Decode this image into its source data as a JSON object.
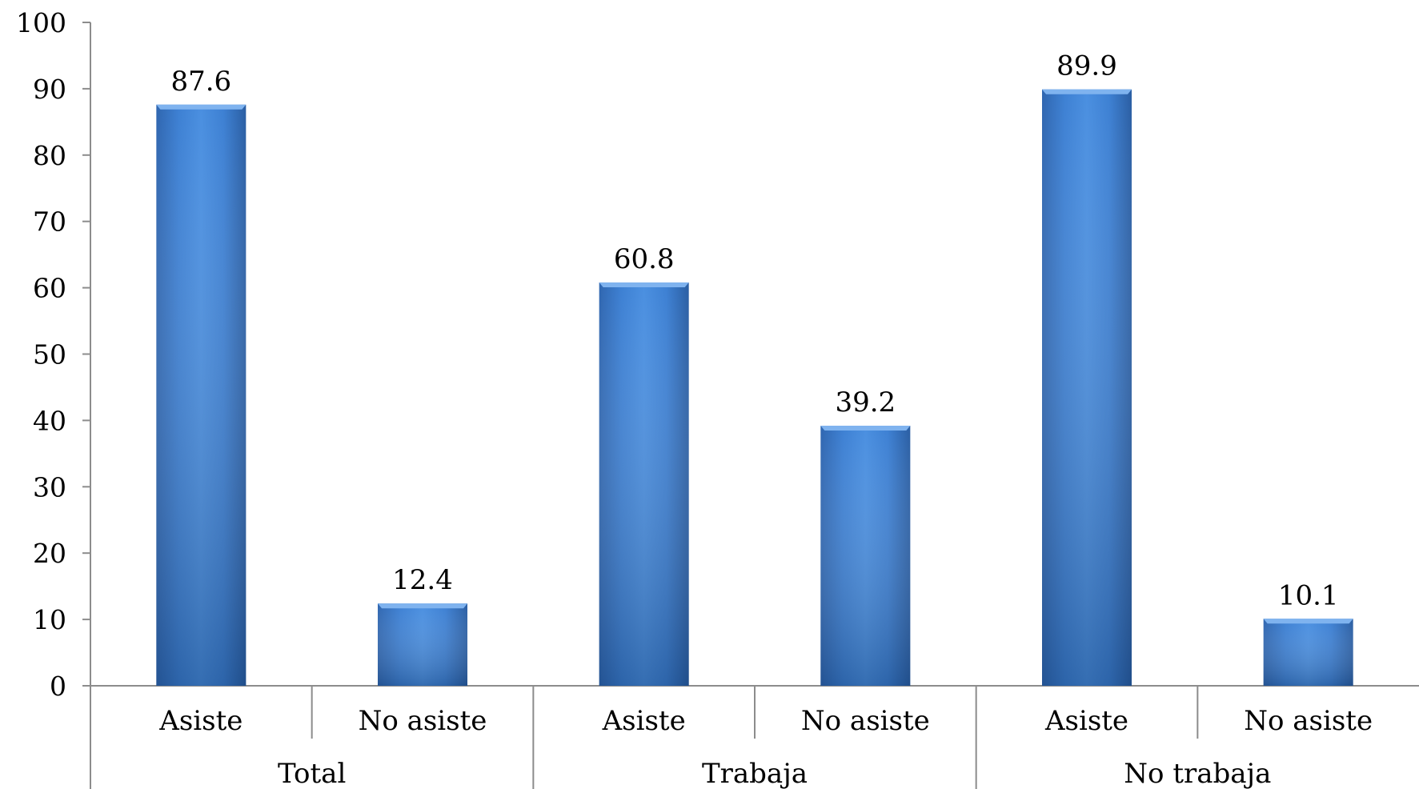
{
  "chart_data": {
    "type": "bar",
    "title": "",
    "xlabel": "",
    "ylabel": "",
    "ylim": [
      0,
      100
    ],
    "yticks": [
      "0",
      "10",
      "20",
      "30",
      "40",
      "50",
      "60",
      "70",
      "80",
      "90",
      "100"
    ],
    "grid": false,
    "legend": "none",
    "categories": [
      {
        "label": "Asiste",
        "group": "Total",
        "value": 87.6,
        "value_label": "87.6"
      },
      {
        "label": "No asiste",
        "group": "Total",
        "value": 12.4,
        "value_label": "12.4"
      },
      {
        "label": "Asiste",
        "group": "Trabaja",
        "value": 60.8,
        "value_label": "60.8"
      },
      {
        "label": "No asiste",
        "group": "Trabaja",
        "value": 39.2,
        "value_label": "39.2"
      },
      {
        "label": "Asiste",
        "group": "No trabaja",
        "value": 89.9,
        "value_label": "89.9"
      },
      {
        "label": "No asiste",
        "group": "No trabaja",
        "value": 10.1,
        "value_label": "10.1"
      }
    ],
    "groups": [
      "Total",
      "Trabaja",
      "No trabaja"
    ],
    "colors": {
      "bar_light": "#4a8fe0",
      "bar_mid": "#3a7bcc",
      "bar_dark": "#2a5ea3",
      "axis": "#8c8c8c"
    }
  }
}
